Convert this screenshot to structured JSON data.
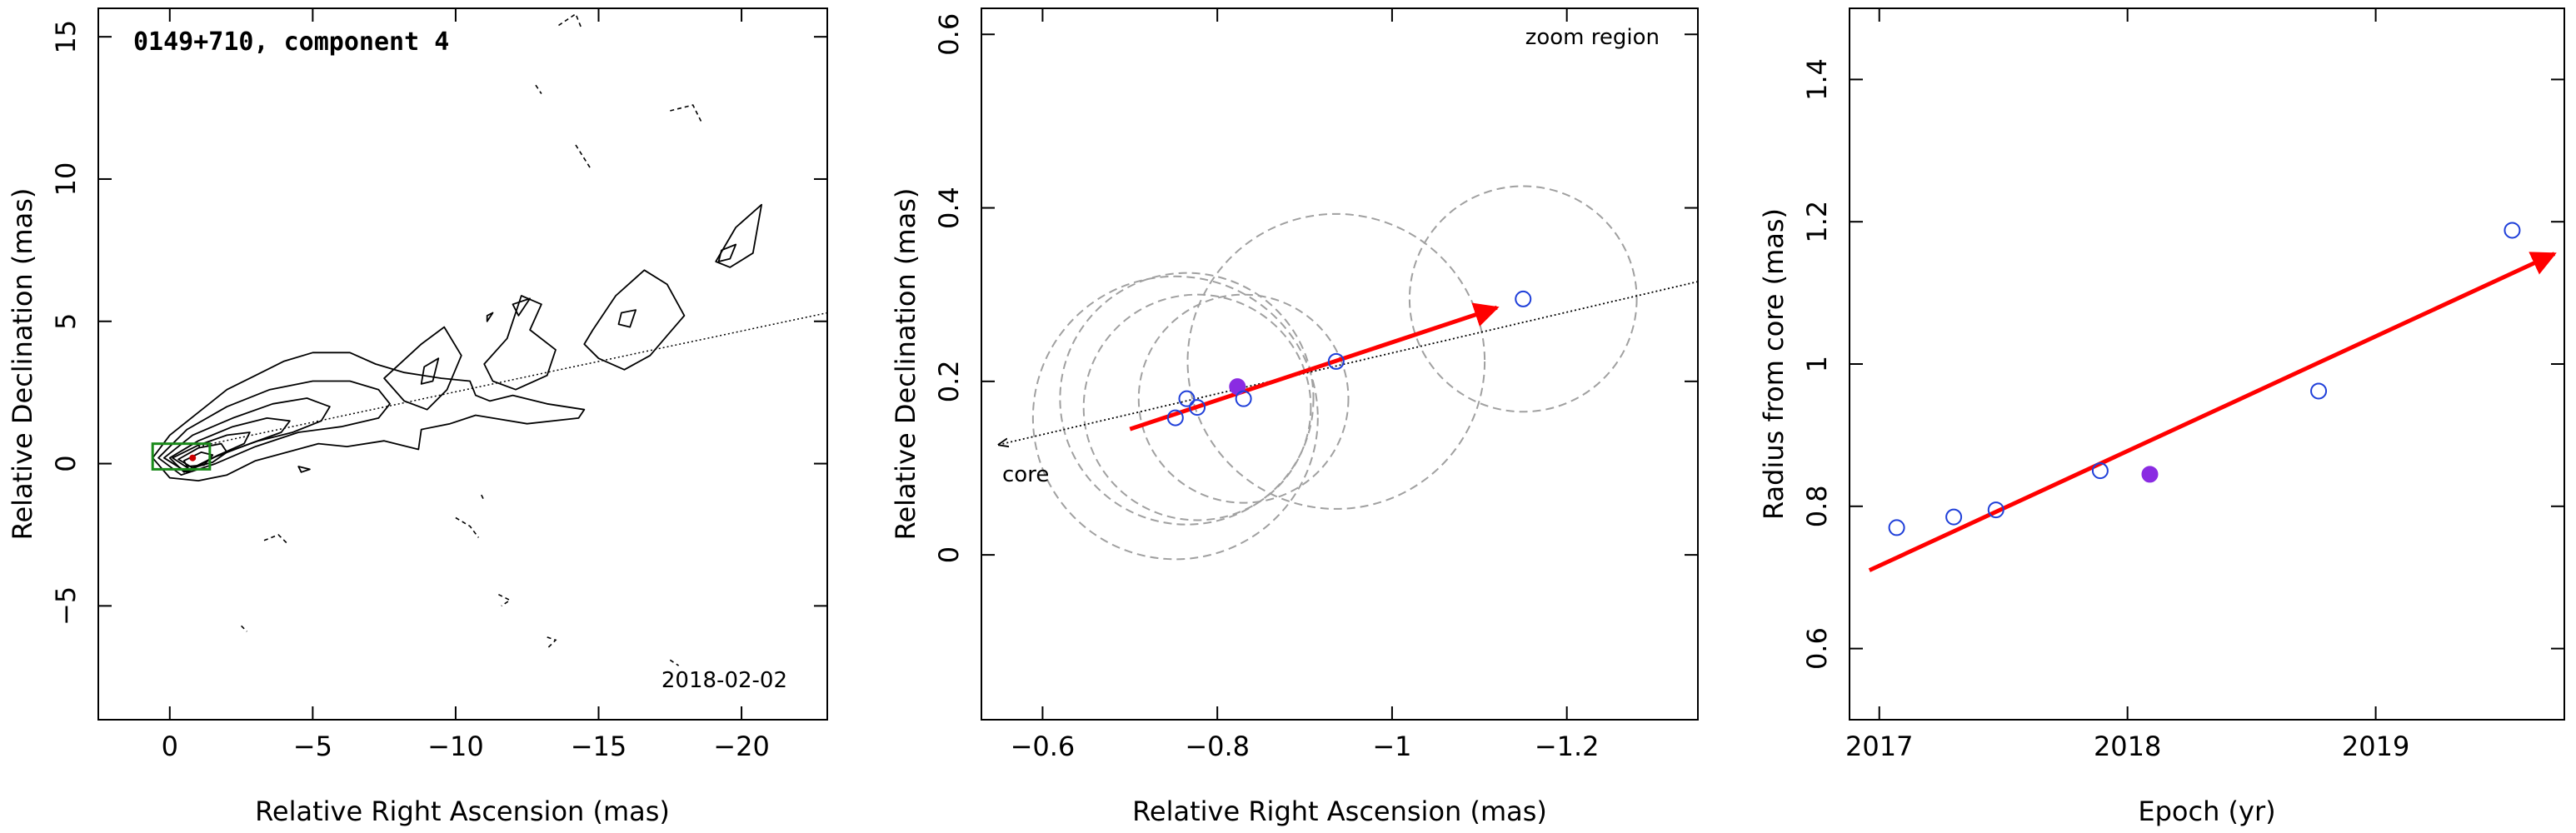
{
  "chart_data": [
    {
      "type": "contour",
      "title": "0149+710, component 4",
      "date_label": "2018-02-02",
      "xlabel": "Relative Right Ascension (mas)",
      "ylabel": "Relative Declination (mas)",
      "xlim": [
        2.5,
        -23
      ],
      "ylim": [
        -9,
        16
      ],
      "x_ticks": [
        0,
        -5,
        -10,
        -15,
        -20
      ],
      "x_tick_labels": [
        "0",
        "−5",
        "−10",
        "−15",
        "−20"
      ],
      "y_ticks": [
        -5,
        0,
        5,
        10,
        15
      ],
      "y_tick_labels": [
        "−5",
        "0",
        "5",
        "10",
        "15"
      ],
      "grid": false,
      "contours": [
        {
          "x": [
            0.6,
            0,
            -1,
            -2,
            -3,
            -4,
            -5,
            -6.3,
            -7.2,
            -8.2,
            -9.5,
            -10.5,
            -10.7,
            -11.2,
            -12,
            -13.2,
            -14.5,
            -14.3,
            -12.5,
            -11.3,
            -10.7,
            -9.8,
            -8.8,
            -8.7,
            -7.5,
            -6.2,
            -5.2,
            -4.1,
            -3,
            -2,
            -1,
            0,
            0.6
          ],
          "y": [
            0.2,
            1,
            1.8,
            2.6,
            3.1,
            3.6,
            3.9,
            3.9,
            3.5,
            3.2,
            3,
            2.9,
            2.4,
            2.2,
            2.4,
            2.1,
            1.9,
            1.6,
            1.4,
            1.6,
            1.7,
            1.4,
            1.2,
            0.5,
            0.8,
            0.6,
            0.7,
            0.4,
            0.1,
            -0.4,
            -0.6,
            -0.5,
            0.2
          ]
        },
        {
          "x": [
            0.4,
            -0.6,
            -2,
            -3.5,
            -5,
            -6.3,
            -7.3,
            -7.7,
            -7.3,
            -6,
            -4.5,
            -3,
            -1.6,
            -0.4,
            0.4
          ],
          "y": [
            0.2,
            1.2,
            2,
            2.6,
            2.9,
            2.9,
            2.6,
            2.1,
            1.6,
            1.3,
            1.1,
            0.6,
            0,
            -0.4,
            0.2
          ]
        },
        {
          "x": [
            0.2,
            -0.8,
            -2.2,
            -3.6,
            -4.8,
            -5.6,
            -5.3,
            -4.3,
            -3.1,
            -1.7,
            -0.6,
            0.2
          ],
          "y": [
            0.2,
            1,
            1.6,
            2.1,
            2.3,
            2,
            1.5,
            1.1,
            0.8,
            0.3,
            -0.3,
            0.2
          ]
        },
        {
          "x": [
            0,
            -1,
            -2.2,
            -3.4,
            -4.2,
            -3.9,
            -2.8,
            -1.5,
            -0.5,
            0
          ],
          "y": [
            0.2,
            0.8,
            1.3,
            1.6,
            1.5,
            1.1,
            0.7,
            0.2,
            -0.3,
            0.2
          ]
        },
        {
          "x": [
            -0.1,
            -1,
            -2,
            -2.8,
            -2.6,
            -1.7,
            -0.7,
            -0.1
          ],
          "y": [
            0.2,
            0.65,
            1,
            1.1,
            0.7,
            0.3,
            -0.2,
            0.2
          ]
        },
        {
          "x": [
            -0.3,
            -1,
            -1.8,
            -2,
            -1.5,
            -0.8,
            -0.3
          ],
          "y": [
            0.15,
            0.55,
            0.7,
            0.4,
            0.05,
            -0.15,
            0.15
          ]
        },
        {
          "x": [
            -0.5,
            -1.1,
            -1.5,
            -1.2,
            -0.6,
            -0.5
          ],
          "y": [
            0.1,
            0.4,
            0.3,
            -0.05,
            -0.1,
            0.1
          ]
        },
        {
          "x": [
            -7.5,
            -8.8,
            -9.6,
            -10.2,
            -9.7,
            -9,
            -8.2,
            -7.5
          ],
          "y": [
            3,
            4.2,
            4.8,
            3.8,
            2.6,
            1.9,
            2.2,
            3
          ]
        },
        {
          "x": [
            -8.9,
            -9.4,
            -9.2,
            -8.8,
            -8.9
          ],
          "y": [
            3.4,
            3.7,
            2.9,
            2.8,
            3.4
          ]
        },
        {
          "x": [
            -11,
            -11.8,
            -12.3,
            -13,
            -12.6,
            -13.5,
            -13.2,
            -12.1,
            -11.3,
            -11
          ],
          "y": [
            3.5,
            4.4,
            5.9,
            5.6,
            4.7,
            4,
            3.1,
            2.6,
            2.9,
            3.5
          ]
        },
        {
          "x": [
            -14.8,
            -15.6,
            -16.6,
            -17.4,
            -18,
            -17.4,
            -16.8,
            -15.9,
            -15,
            -14.5,
            -14.8
          ],
          "y": [
            4.7,
            5.9,
            6.8,
            6.3,
            5.2,
            4.5,
            3.8,
            3.3,
            3.7,
            4.2,
            4.7
          ]
        },
        {
          "x": [
            -15.8,
            -16.3,
            -16.1,
            -15.7,
            -15.8
          ],
          "y": [
            5.3,
            5.4,
            4.8,
            4.9,
            5.3
          ]
        },
        {
          "x": [
            -19.1,
            -19.8,
            -20.7,
            -20.4,
            -19.6,
            -19.1
          ],
          "y": [
            7.1,
            8.3,
            9.1,
            7.4,
            6.9,
            7.1
          ]
        },
        {
          "x": [
            -19.3,
            -19.8,
            -19.6,
            -19.2,
            -19.3
          ],
          "y": [
            7.5,
            7.7,
            7.2,
            7.1,
            7.5
          ]
        },
        {
          "x": [
            -12,
            -12.6,
            -12.2,
            -12
          ],
          "y": [
            5.6,
            5.8,
            5.2,
            5.6
          ]
        },
        {
          "x": [
            -11.1,
            -11.3,
            -11.1,
            -11.1
          ],
          "y": [
            5.2,
            5.3,
            5,
            5.2
          ]
        },
        {
          "x": [
            -4.5,
            -4.9,
            -4.6,
            -4.5
          ],
          "y": [
            -0.1,
            -0.2,
            -0.3,
            -0.1
          ]
        }
      ],
      "dashed_contours": [
        {
          "x": [
            -13.6,
            -14.2,
            -14.4
          ],
          "y": [
            15.4,
            15.8,
            15.3
          ]
        },
        {
          "x": [
            -17.5,
            -18.3,
            -18.6
          ],
          "y": [
            12.4,
            12.6,
            12
          ]
        },
        {
          "x": [
            -14.2,
            -14.7
          ],
          "y": [
            11.2,
            10.4
          ]
        },
        {
          "x": [
            -12.8,
            -13
          ],
          "y": [
            13.3,
            13
          ]
        },
        {
          "x": [
            -10,
            -10.5,
            -10.8
          ],
          "y": [
            -1.9,
            -2.2,
            -2.6
          ]
        },
        {
          "x": [
            -3.3,
            -3.8,
            -4.1
          ],
          "y": [
            -2.7,
            -2.5,
            -2.8
          ]
        },
        {
          "x": [
            -11.5,
            -11.9,
            -11.6
          ],
          "y": [
            -4.6,
            -4.8,
            -5
          ]
        },
        {
          "x": [
            -13.2,
            -13.5,
            -13.2
          ],
          "y": [
            -6.1,
            -6.2,
            -6.5
          ]
        },
        {
          "x": [
            -10.9,
            -11
          ],
          "y": [
            -1.1,
            -1.3
          ]
        },
        {
          "x": [
            -17.5,
            -17.8
          ],
          "y": [
            -6.9,
            -7.1
          ]
        },
        {
          "x": [
            -2.5,
            -2.7
          ],
          "y": [
            -5.7,
            -5.9
          ]
        }
      ],
      "reference_line": {
        "x": [
          -1,
          -23
        ],
        "y": [
          0.6,
          5.3
        ],
        "style": "dotted"
      },
      "zoom_box": {
        "x": [
          0.6,
          -1.4
        ],
        "y": [
          -0.2,
          0.7
        ],
        "color": "#1a8a1a"
      },
      "marker": {
        "x": -0.8,
        "y": 0.2,
        "color": "#cc0000"
      }
    },
    {
      "type": "scatter",
      "note": "zoom region",
      "core_label": "core",
      "xlabel": "Relative Right Ascension (mas)",
      "ylabel": "Relative Declination (mas)",
      "xlim": [
        -0.53,
        -1.35
      ],
      "ylim": [
        -0.19,
        0.63
      ],
      "x_ticks": [
        -0.6,
        -0.8,
        -1,
        -1.2
      ],
      "x_tick_labels": [
        "−0.6",
        "−0.8",
        "−1",
        "−1.2"
      ],
      "y_ticks": [
        0,
        0.2,
        0.4,
        0.6
      ],
      "y_tick_labels": [
        "0",
        "0.2",
        "0.4",
        "0.6"
      ],
      "grid": false,
      "points": [
        {
          "x": -0.752,
          "y": 0.158,
          "filled": false
        },
        {
          "x": -0.765,
          "y": 0.18,
          "filled": false
        },
        {
          "x": -0.777,
          "y": 0.17,
          "filled": false
        },
        {
          "x": -0.823,
          "y": 0.194,
          "filled": true
        },
        {
          "x": -0.83,
          "y": 0.18,
          "filled": false
        },
        {
          "x": -0.936,
          "y": 0.223,
          "filled": false
        },
        {
          "x": -1.15,
          "y": 0.295,
          "filled": false
        }
      ],
      "circles": [
        {
          "x": -0.752,
          "y": 0.158,
          "r": 0.163
        },
        {
          "x": -0.765,
          "y": 0.18,
          "r": 0.145
        },
        {
          "x": -0.777,
          "y": 0.17,
          "r": 0.13
        },
        {
          "x": -0.83,
          "y": 0.18,
          "r": 0.12
        },
        {
          "x": -0.936,
          "y": 0.223,
          "r": 0.17
        },
        {
          "x": -1.15,
          "y": 0.295,
          "r": 0.13
        }
      ],
      "reference_line": {
        "x": [
          -0.55,
          -1.35
        ],
        "y": [
          0.127,
          0.315
        ],
        "style": "dotted"
      },
      "motion_arrow": {
        "x": [
          -0.7,
          -1.12
        ],
        "y": [
          0.145,
          0.285
        ],
        "color": "#ff0000"
      },
      "point_color": "#1f3fd9",
      "filled_color": "#8a2be2",
      "circle_color": "#a0a0a0"
    },
    {
      "type": "scatter",
      "xlabel": "Epoch (yr)",
      "ylabel": "Radius from core (mas)",
      "xlim": [
        2016.88,
        2019.76
      ],
      "ylim": [
        0.5,
        1.5
      ],
      "x_ticks": [
        2017,
        2018,
        2019
      ],
      "x_tick_labels": [
        "2017",
        "2018",
        "2019"
      ],
      "y_ticks": [
        0.6,
        0.8,
        1,
        1.2,
        1.4
      ],
      "y_tick_labels": [
        "0.6",
        "0.8",
        "1",
        "1.2",
        "1.4"
      ],
      "grid": false,
      "points": [
        {
          "x": 2017.07,
          "y": 0.77,
          "filled": false
        },
        {
          "x": 2017.3,
          "y": 0.785,
          "filled": false
        },
        {
          "x": 2017.47,
          "y": 0.795,
          "filled": false
        },
        {
          "x": 2017.89,
          "y": 0.85,
          "filled": false
        },
        {
          "x": 2018.09,
          "y": 0.845,
          "filled": true
        },
        {
          "x": 2018.77,
          "y": 0.962,
          "filled": false
        },
        {
          "x": 2019.55,
          "y": 1.188,
          "filled": false
        }
      ],
      "motion_arrow": {
        "x": [
          2016.96,
          2019.72
        ],
        "y": [
          0.71,
          1.155
        ],
        "color": "#ff0000"
      },
      "point_color": "#1f3fd9",
      "filled_color": "#8a2be2"
    }
  ]
}
